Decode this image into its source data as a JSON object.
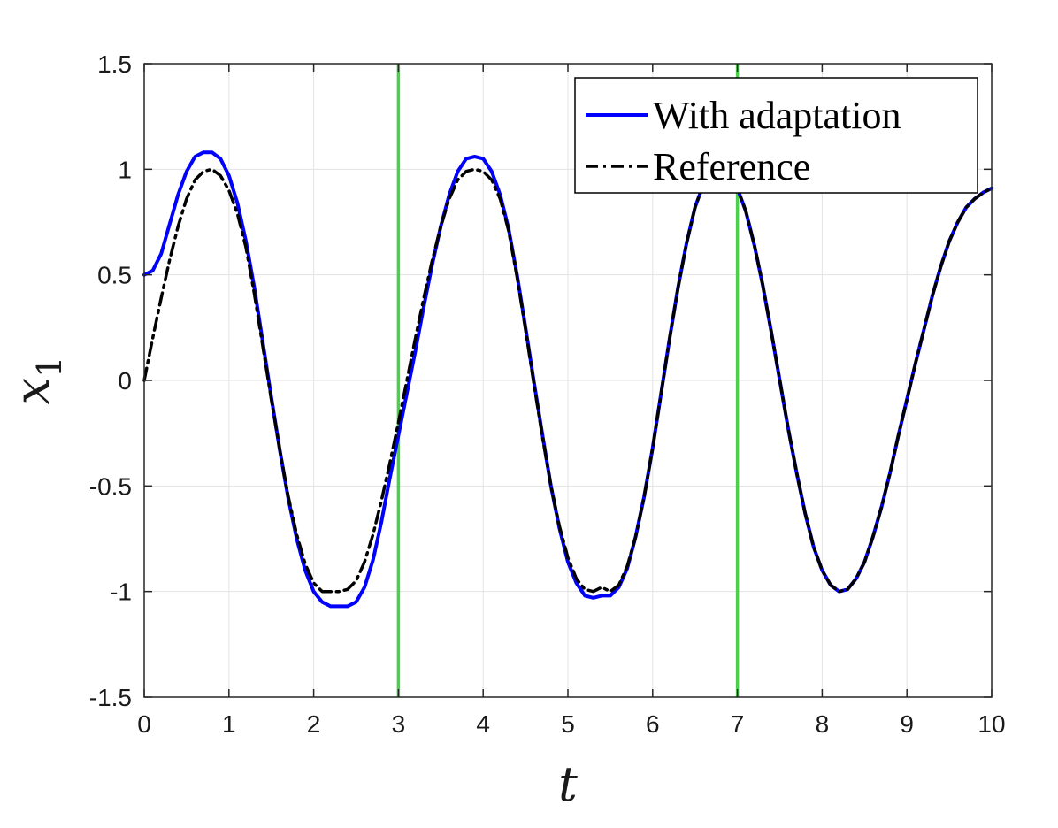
{
  "chart_data": {
    "type": "line",
    "xlabel": "t",
    "ylabel": "x",
    "ylabel_subscript": "1",
    "xlim": [
      0,
      10
    ],
    "ylim": [
      -1.5,
      1.5
    ],
    "xticks": [
      0,
      1,
      2,
      3,
      4,
      5,
      6,
      7,
      8,
      9,
      10
    ],
    "yticks": [
      -1.5,
      -1,
      -0.5,
      0,
      0.5,
      1,
      1.5
    ],
    "ytick_labels": [
      "-1.5",
      "-1",
      "-0.5",
      "0",
      "0.5",
      "1",
      "1.5"
    ],
    "grid": true,
    "legend_position": "top-right",
    "vertical_lines": [
      {
        "x": 3,
        "color": "#4ccf4c"
      },
      {
        "x": 7,
        "color": "#4ccf4c"
      }
    ],
    "series": [
      {
        "name": "With adaptation",
        "color": "#0000ff",
        "style": "solid",
        "x": [
          0,
          0.1,
          0.2,
          0.3,
          0.4,
          0.5,
          0.6,
          0.7,
          0.8,
          0.9,
          1.0,
          1.1,
          1.2,
          1.3,
          1.4,
          1.5,
          1.6,
          1.7,
          1.8,
          1.9,
          2.0,
          2.1,
          2.2,
          2.3,
          2.4,
          2.5,
          2.6,
          2.7,
          2.8,
          2.9,
          3.0,
          3.1,
          3.2,
          3.3,
          3.4,
          3.5,
          3.6,
          3.7,
          3.8,
          3.9,
          4.0,
          4.1,
          4.2,
          4.3,
          4.4,
          4.5,
          4.6,
          4.7,
          4.8,
          4.9,
          5.0,
          5.1,
          5.2,
          5.3,
          5.4,
          5.5,
          5.6,
          5.7,
          5.8,
          5.9,
          6.0,
          6.1,
          6.2,
          6.3,
          6.4,
          6.5,
          6.6,
          6.7,
          6.8,
          6.9,
          7.0,
          7.1,
          7.2,
          7.3,
          7.4,
          7.5,
          7.6,
          7.7,
          7.8,
          7.9,
          8.0,
          8.1,
          8.2,
          8.3,
          8.4,
          8.5,
          8.6,
          8.7,
          8.8,
          8.9,
          9.0,
          9.1,
          9.2,
          9.3,
          9.4,
          9.5,
          9.6,
          9.7,
          9.8,
          9.9,
          10.0
        ],
        "y": [
          0.5,
          0.52,
          0.6,
          0.74,
          0.88,
          0.99,
          1.06,
          1.08,
          1.08,
          1.05,
          0.97,
          0.84,
          0.66,
          0.44,
          0.18,
          -0.08,
          -0.33,
          -0.56,
          -0.75,
          -0.9,
          -1.0,
          -1.05,
          -1.07,
          -1.07,
          -1.07,
          -1.05,
          -0.98,
          -0.85,
          -0.67,
          -0.46,
          -0.26,
          -0.06,
          0.14,
          0.35,
          0.55,
          0.73,
          0.88,
          0.99,
          1.05,
          1.06,
          1.05,
          0.99,
          0.88,
          0.72,
          0.5,
          0.25,
          -0.01,
          -0.26,
          -0.5,
          -0.7,
          -0.86,
          -0.96,
          -1.02,
          -1.03,
          -1.02,
          -1.02,
          -0.98,
          -0.89,
          -0.74,
          -0.55,
          -0.32,
          -0.06,
          0.2,
          0.44,
          0.65,
          0.82,
          0.93,
          0.99,
          1.0,
          0.97,
          0.91,
          0.8,
          0.64,
          0.45,
          0.23,
          0.0,
          -0.23,
          -0.44,
          -0.63,
          -0.79,
          -0.9,
          -0.97,
          -1.0,
          -0.99,
          -0.94,
          -0.86,
          -0.74,
          -0.6,
          -0.44,
          -0.26,
          -0.09,
          0.08,
          0.24,
          0.4,
          0.54,
          0.66,
          0.75,
          0.82,
          0.86,
          0.89,
          0.91
        ]
      },
      {
        "name": "Reference",
        "color": "#000000",
        "style": "dash-dot",
        "x": [
          0,
          0.1,
          0.2,
          0.3,
          0.4,
          0.5,
          0.6,
          0.7,
          0.8,
          0.9,
          1.0,
          1.1,
          1.2,
          1.3,
          1.4,
          1.5,
          1.6,
          1.7,
          1.8,
          1.9,
          2.0,
          2.1,
          2.2,
          2.3,
          2.4,
          2.5,
          2.6,
          2.7,
          2.8,
          2.9,
          3.0,
          3.1,
          3.2,
          3.3,
          3.4,
          3.5,
          3.6,
          3.7,
          3.8,
          3.9,
          4.0,
          4.1,
          4.2,
          4.3,
          4.4,
          4.5,
          4.6,
          4.7,
          4.8,
          4.9,
          5.0,
          5.1,
          5.2,
          5.3,
          5.4,
          5.5,
          5.6,
          5.7,
          5.8,
          5.9,
          6.0,
          6.1,
          6.2,
          6.3,
          6.4,
          6.5,
          6.6,
          6.7,
          6.8,
          6.9,
          7.0,
          7.1,
          7.2,
          7.3,
          7.4,
          7.5,
          7.6,
          7.7,
          7.8,
          7.9,
          8.0,
          8.1,
          8.2,
          8.3,
          8.4,
          8.5,
          8.6,
          8.7,
          8.8,
          8.9,
          9.0,
          9.1,
          9.2,
          9.3,
          9.4,
          9.5,
          9.6,
          9.7,
          9.8,
          9.9,
          10.0
        ],
        "y": [
          0.0,
          0.2,
          0.39,
          0.57,
          0.73,
          0.86,
          0.95,
          0.99,
          1.0,
          0.97,
          0.9,
          0.79,
          0.63,
          0.41,
          0.16,
          -0.09,
          -0.33,
          -0.55,
          -0.73,
          -0.87,
          -0.96,
          -1.0,
          -1.0,
          -1.0,
          -0.99,
          -0.95,
          -0.86,
          -0.73,
          -0.57,
          -0.39,
          -0.2,
          0.0,
          0.2,
          0.39,
          0.57,
          0.73,
          0.86,
          0.95,
          0.99,
          1.0,
          0.99,
          0.95,
          0.86,
          0.71,
          0.49,
          0.24,
          -0.02,
          -0.27,
          -0.5,
          -0.69,
          -0.84,
          -0.94,
          -0.99,
          -1.0,
          -0.98,
          -1.0,
          -0.97,
          -0.88,
          -0.74,
          -0.55,
          -0.32,
          -0.06,
          0.2,
          0.44,
          0.65,
          0.82,
          0.93,
          0.99,
          1.0,
          0.97,
          0.91,
          0.8,
          0.64,
          0.45,
          0.23,
          0.0,
          -0.23,
          -0.44,
          -0.63,
          -0.79,
          -0.9,
          -0.97,
          -1.0,
          -0.99,
          -0.94,
          -0.86,
          -0.74,
          -0.6,
          -0.44,
          -0.26,
          -0.09,
          0.08,
          0.24,
          0.4,
          0.54,
          0.66,
          0.75,
          0.82,
          0.86,
          0.89,
          0.91
        ]
      }
    ]
  }
}
